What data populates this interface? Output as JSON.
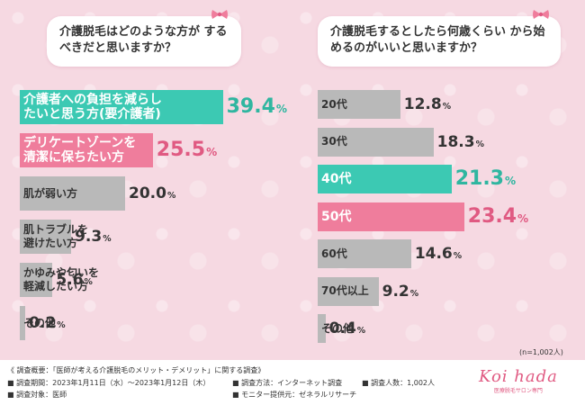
{
  "left": {
    "question": "介護脱毛はどのような方が するべきだと思いますか？",
    "chart_data": {
      "type": "bar",
      "orientation": "horizontal",
      "categories": [
        "介護者への負担を減らしたいと思う方（要介護者）",
        "デリケートゾーンを清潔に保ちたい方",
        "肌が弱い方",
        "肌トラブルを避けたい方",
        "かゆみや匂いを軽減したい方",
        "その他"
      ],
      "display_lines": [
        [
          "介護者への負担を減らし",
          "たいと思う方(要介護者)"
        ],
        [
          "デリケートゾーンを",
          "清潔に保ちたい方"
        ],
        [
          "肌が弱い方"
        ],
        [
          "肌トラブルを",
          "避けたい方"
        ],
        [
          "かゆみや匂いを",
          "軽減したい方"
        ],
        [
          "その他"
        ]
      ],
      "values": [
        39.4,
        25.5,
        20.0,
        9.3,
        5.6,
        0.2
      ],
      "value_labels": [
        "39.4",
        "25.5",
        "20.0",
        "9.3",
        "5.6",
        "0.2"
      ],
      "unit": "%",
      "highlight": [
        "teal",
        "pink",
        "gray",
        "gray",
        "gray",
        "gray"
      ]
    }
  },
  "right": {
    "question": "介護脱毛するとしたら何歳くらい から始めるのがいいと思いますか？",
    "chart_data": {
      "type": "bar",
      "orientation": "horizontal",
      "categories": [
        "20代",
        "30代",
        "40代",
        "50代",
        "60代",
        "70代以上",
        "その他"
      ],
      "values": [
        12.8,
        18.3,
        21.3,
        23.4,
        14.6,
        9.2,
        0.4
      ],
      "value_labels": [
        "12.8",
        "18.3",
        "21.3",
        "23.4",
        "14.6",
        "9.2",
        "0.4"
      ],
      "unit": "%",
      "highlight": [
        "gray",
        "gray",
        "teal",
        "pink",
        "gray",
        "gray",
        "gray"
      ]
    },
    "n_label": "(n=1,002人)"
  },
  "colors": {
    "teal": "#3cc9b3",
    "pink": "#ef7d9c",
    "gray": "#b9b9b9",
    "pink_text": "#e05a82",
    "teal_text": "#2fb6a0"
  },
  "footer": {
    "overview": "《 調査概要：「医師が考える介護脱毛のメリット・デメリット」に関する調査》",
    "period": "■ 調査期間：2023年1月11日（水）～2023年1月12日（木）",
    "method": "■ 調査方法：インターネット調査",
    "count": "■ 調査人数：1,002人",
    "target": "■ 調査対象：医師",
    "provider": "■ モニター提供元：ゼネラルリサーチ"
  },
  "logo": {
    "text": "Koi hada",
    "subtext": "医療脱毛サロン専門"
  }
}
